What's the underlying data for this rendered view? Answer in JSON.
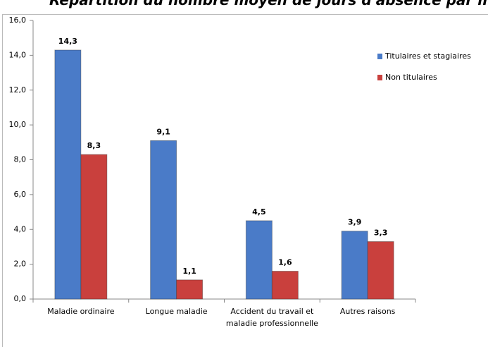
{
  "chart_data": {
    "type": "bar",
    "title": "Répartition du nombre moyen de jours d'absence par motif",
    "categories": [
      "Maladie ordinaire",
      "Longue maladie",
      "Accident du travail et maladie professionnelle",
      "Autres raisons"
    ],
    "series": [
      {
        "name": "Titulaires et stagiaires",
        "color": "#4a7bc8",
        "values": [
          14.3,
          9.1,
          4.5,
          3.9
        ],
        "value_labels": [
          "14,3",
          "9,1",
          "4,5",
          "3,9"
        ]
      },
      {
        "name": "Non titulaires",
        "color": "#c9403d",
        "values": [
          8.3,
          1.1,
          1.6,
          3.3
        ],
        "value_labels": [
          "8,3",
          "1,1",
          "1,6",
          "3,3"
        ]
      }
    ],
    "ylim": [
      0,
      16
    ],
    "yticks": [
      {
        "value": 0,
        "label": "0,0"
      },
      {
        "value": 2,
        "label": "2,0"
      },
      {
        "value": 4,
        "label": "4,0"
      },
      {
        "value": 6,
        "label": "6,0"
      },
      {
        "value": 8,
        "label": "8,0"
      },
      {
        "value": 10,
        "label": "10,0"
      },
      {
        "value": 12,
        "label": "12,0"
      },
      {
        "value": 14,
        "label": "14,0"
      },
      {
        "value": 16,
        "label": "16,0"
      }
    ],
    "legend": "right"
  }
}
